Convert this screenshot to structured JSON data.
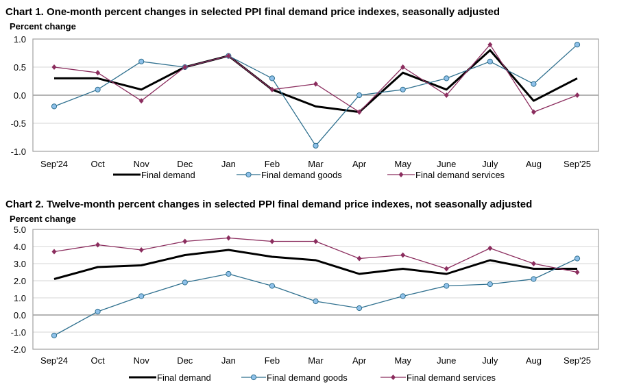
{
  "chart_data": [
    {
      "type": "line",
      "title": "Chart 1. One-month percent changes in selected PPI final demand price indexes, seasonally adjusted",
      "ylabel": "Percent change",
      "xlabel": "",
      "categories": [
        "Sep'24",
        "Oct",
        "Nov",
        "Dec",
        "Jan",
        "Feb",
        "Mar",
        "Apr",
        "May",
        "June",
        "July",
        "Aug",
        "Sep'25"
      ],
      "ylim": [
        -1.0,
        1.0
      ],
      "yticks": [
        "1.0",
        "0.5",
        "0.0",
        "-0.5",
        "-1.0"
      ],
      "ytick_values": [
        1.0,
        0.5,
        0.0,
        -0.5,
        -1.0
      ],
      "grid": true,
      "legend": "bottom",
      "series": [
        {
          "name": "Final demand",
          "color": "#000000",
          "marker": "none",
          "values": [
            0.3,
            0.3,
            0.1,
            0.5,
            0.7,
            0.1,
            -0.2,
            -0.3,
            0.4,
            0.1,
            0.8,
            -0.1,
            0.3
          ]
        },
        {
          "name": "Final demand goods",
          "color": "#2e6f8e",
          "marker": "circle",
          "values": [
            -0.2,
            0.1,
            0.6,
            0.5,
            0.7,
            0.3,
            -0.9,
            0.0,
            0.1,
            0.3,
            0.6,
            0.2,
            0.9
          ]
        },
        {
          "name": "Final demand services",
          "color": "#8b2d5e",
          "marker": "diamond",
          "values": [
            0.5,
            0.4,
            -0.1,
            0.5,
            0.7,
            0.1,
            0.2,
            -0.3,
            0.5,
            0.0,
            0.9,
            -0.3,
            0.0
          ]
        }
      ]
    },
    {
      "type": "line",
      "title": "Chart 2. Twelve-month percent changes in selected PPI final demand price indexes, not seasonally adjusted",
      "ylabel": "Percent change",
      "xlabel": "",
      "categories": [
        "Sep'24",
        "Oct",
        "Nov",
        "Dec",
        "Jan",
        "Feb",
        "Mar",
        "Apr",
        "May",
        "June",
        "July",
        "Aug",
        "Sep'25"
      ],
      "ylim": [
        -2.0,
        5.0
      ],
      "yticks": [
        "5.0",
        "4.0",
        "3.0",
        "2.0",
        "1.0",
        "0.0",
        "-1.0",
        "-2.0"
      ],
      "ytick_values": [
        5.0,
        4.0,
        3.0,
        2.0,
        1.0,
        0.0,
        -1.0,
        -2.0
      ],
      "grid": true,
      "legend": "bottom",
      "series": [
        {
          "name": "Final demand",
          "color": "#000000",
          "marker": "none",
          "values": [
            2.1,
            2.8,
            2.9,
            3.5,
            3.8,
            3.4,
            3.2,
            2.4,
            2.7,
            2.4,
            3.2,
            2.7,
            2.7
          ]
        },
        {
          "name": "Final demand goods",
          "color": "#2e6f8e",
          "marker": "circle",
          "values": [
            -1.2,
            0.2,
            1.1,
            1.9,
            2.4,
            1.7,
            0.8,
            0.4,
            1.1,
            1.7,
            1.8,
            2.1,
            3.3
          ]
        },
        {
          "name": "Final demand services",
          "color": "#8b2d5e",
          "marker": "diamond",
          "values": [
            3.7,
            4.1,
            3.8,
            4.3,
            4.5,
            4.3,
            4.3,
            3.3,
            3.5,
            2.7,
            3.9,
            3.0,
            2.5
          ]
        }
      ]
    }
  ]
}
